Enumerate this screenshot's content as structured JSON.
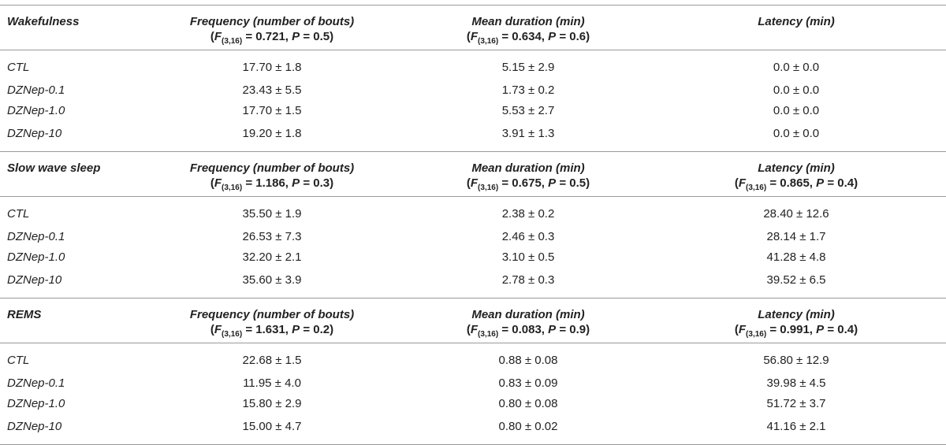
{
  "sections": [
    {
      "title": "Wakefulness",
      "headers": [
        {
          "label": "Frequency (number of bouts)",
          "stat_F": "F",
          "stat_sub": "(3,16)",
          "stat_rest": " = 0.721, ",
          "stat_P": "P",
          "stat_p_rest": " = 0.5)"
        },
        {
          "label": "Mean duration (min)",
          "stat_F": "F",
          "stat_sub": "(3,16)",
          "stat_rest": " = 0.634, ",
          "stat_P": "P",
          "stat_p_rest": " = 0.6)"
        },
        {
          "label": "Latency (min)",
          "stat_F": "",
          "stat_sub": "",
          "stat_rest": "",
          "stat_P": "",
          "stat_p_rest": ""
        }
      ],
      "rows": [
        {
          "group": "CTL",
          "values": [
            "17.70 ± 1.8",
            "5.15 ± 2.9",
            "0.0 ± 0.0"
          ]
        },
        {
          "group": "DZNep-0.1",
          "values": [
            "23.43 ± 5.5",
            "1.73 ± 0.2",
            "0.0 ± 0.0"
          ]
        },
        {
          "group": "DZNep-1.0",
          "values": [
            "17.70 ± 1.5",
            "5.53 ± 2.7",
            "0.0 ± 0.0"
          ]
        },
        {
          "group": "DZNep-10",
          "values": [
            "19.20 ± 1.8",
            "3.91 ± 1.3",
            "0.0 ± 0.0"
          ]
        }
      ]
    },
    {
      "title": "Slow wave sleep",
      "headers": [
        {
          "label": "Frequency (number of bouts)",
          "stat_F": "F",
          "stat_sub": "(3,16)",
          "stat_rest": " = 1.186, ",
          "stat_P": "P",
          "stat_p_rest": " = 0.3)"
        },
        {
          "label": "Mean duration (min)",
          "stat_F": "F",
          "stat_sub": "(3,16)",
          "stat_rest": " = 0.675, ",
          "stat_P": "P",
          "stat_p_rest": " = 0.5)"
        },
        {
          "label": "Latency (min)",
          "stat_F": "F",
          "stat_sub": "(3,16)",
          "stat_rest": " = 0.865, ",
          "stat_P": "P",
          "stat_p_rest": " = 0.4)"
        }
      ],
      "rows": [
        {
          "group": "CTL",
          "values": [
            "35.50 ± 1.9",
            "2.38 ± 0.2",
            "28.40 ± 12.6"
          ]
        },
        {
          "group": "DZNep-0.1",
          "values": [
            "26.53 ± 7.3",
            "2.46 ± 0.3",
            "28.14 ± 1.7"
          ]
        },
        {
          "group": "DZNep-1.0",
          "values": [
            "32.20 ± 2.1",
            "3.10 ± 0.5",
            "41.28 ± 4.8"
          ]
        },
        {
          "group": "DZNep-10",
          "values": [
            "35.60 ± 3.9",
            "2.78 ± 0.3",
            "39.52 ± 6.5"
          ]
        }
      ]
    },
    {
      "title": "REMS",
      "headers": [
        {
          "label": "Frequency (number of bouts)",
          "stat_F": "F",
          "stat_sub": "(3,16)",
          "stat_rest": " = 1.631, ",
          "stat_P": "P",
          "stat_p_rest": " = 0.2)"
        },
        {
          "label": "Mean duration (min)",
          "stat_F": "F",
          "stat_sub": "(3,16)",
          "stat_rest": " = 0.083, ",
          "stat_P": "P",
          "stat_p_rest": " = 0.9)"
        },
        {
          "label": "Latency (min)",
          "stat_F": "F",
          "stat_sub": "(3,16)",
          "stat_rest": " = 0.991, ",
          "stat_P": "P",
          "stat_p_rest": " = 0.4)"
        }
      ],
      "rows": [
        {
          "group": "CTL",
          "values": [
            "22.68 ± 1.5",
            "0.88 ± 0.08",
            "56.80 ± 12.9"
          ]
        },
        {
          "group": "DZNep-0.1",
          "values": [
            "11.95 ± 4.0",
            "0.83 ± 0.09",
            "39.98 ± 4.5"
          ]
        },
        {
          "group": "DZNep-1.0",
          "values": [
            "15.80 ± 2.9",
            "0.80 ± 0.08",
            "51.72 ± 3.7"
          ]
        },
        {
          "group": "DZNep-10",
          "values": [
            "15.00 ± 4.7",
            "0.80 ± 0.02",
            "41.16 ± 2.1"
          ]
        }
      ]
    }
  ]
}
